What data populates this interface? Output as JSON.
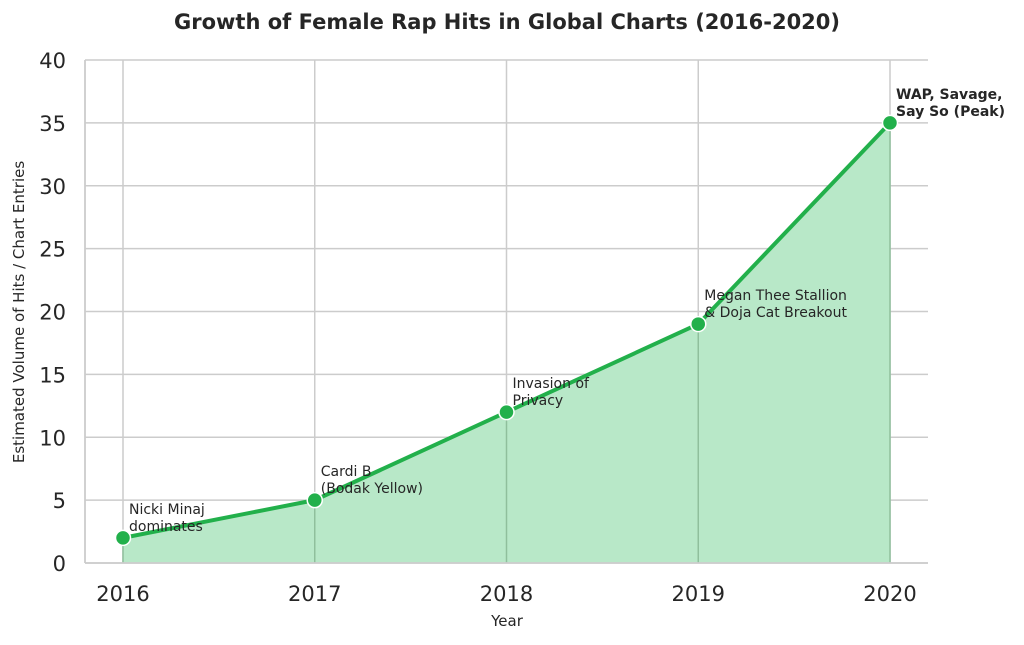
{
  "chart_data": {
    "type": "area",
    "title": "Growth of Female Rap Hits in Global Charts (2016-2020)",
    "xlabel": "Year",
    "ylabel": "Estimated Volume of Hits / Chart Entries",
    "x": [
      "2016",
      "2017",
      "2018",
      "2019",
      "2020"
    ],
    "series": [
      {
        "values": [
          2,
          5,
          12,
          19,
          35
        ]
      }
    ],
    "ylim": [
      0,
      40
    ],
    "yticks": [
      "0",
      "5",
      "10",
      "15",
      "20",
      "25",
      "30",
      "35",
      "40"
    ],
    "grid": true,
    "annotations": [
      {
        "lines": [
          "Nicki Minaj",
          "dominates"
        ],
        "bold": false
      },
      {
        "lines": [
          "Cardi B",
          "(Bodak Yellow)"
        ],
        "bold": false
      },
      {
        "lines": [
          "Invasion of",
          "Privacy"
        ],
        "bold": false
      },
      {
        "lines": [
          "Megan Thee Stallion",
          "& Doja Cat Breakout"
        ],
        "bold": false
      },
      {
        "lines": [
          "WAP, Savage,",
          "Say So (Peak)"
        ],
        "bold": true
      }
    ],
    "colors": {
      "line": "#22b04b",
      "fill": "#b8e8c8",
      "marker": "#22b04b",
      "marker_edge": "#ffffff",
      "drop_line": "#8fbf9c"
    }
  }
}
